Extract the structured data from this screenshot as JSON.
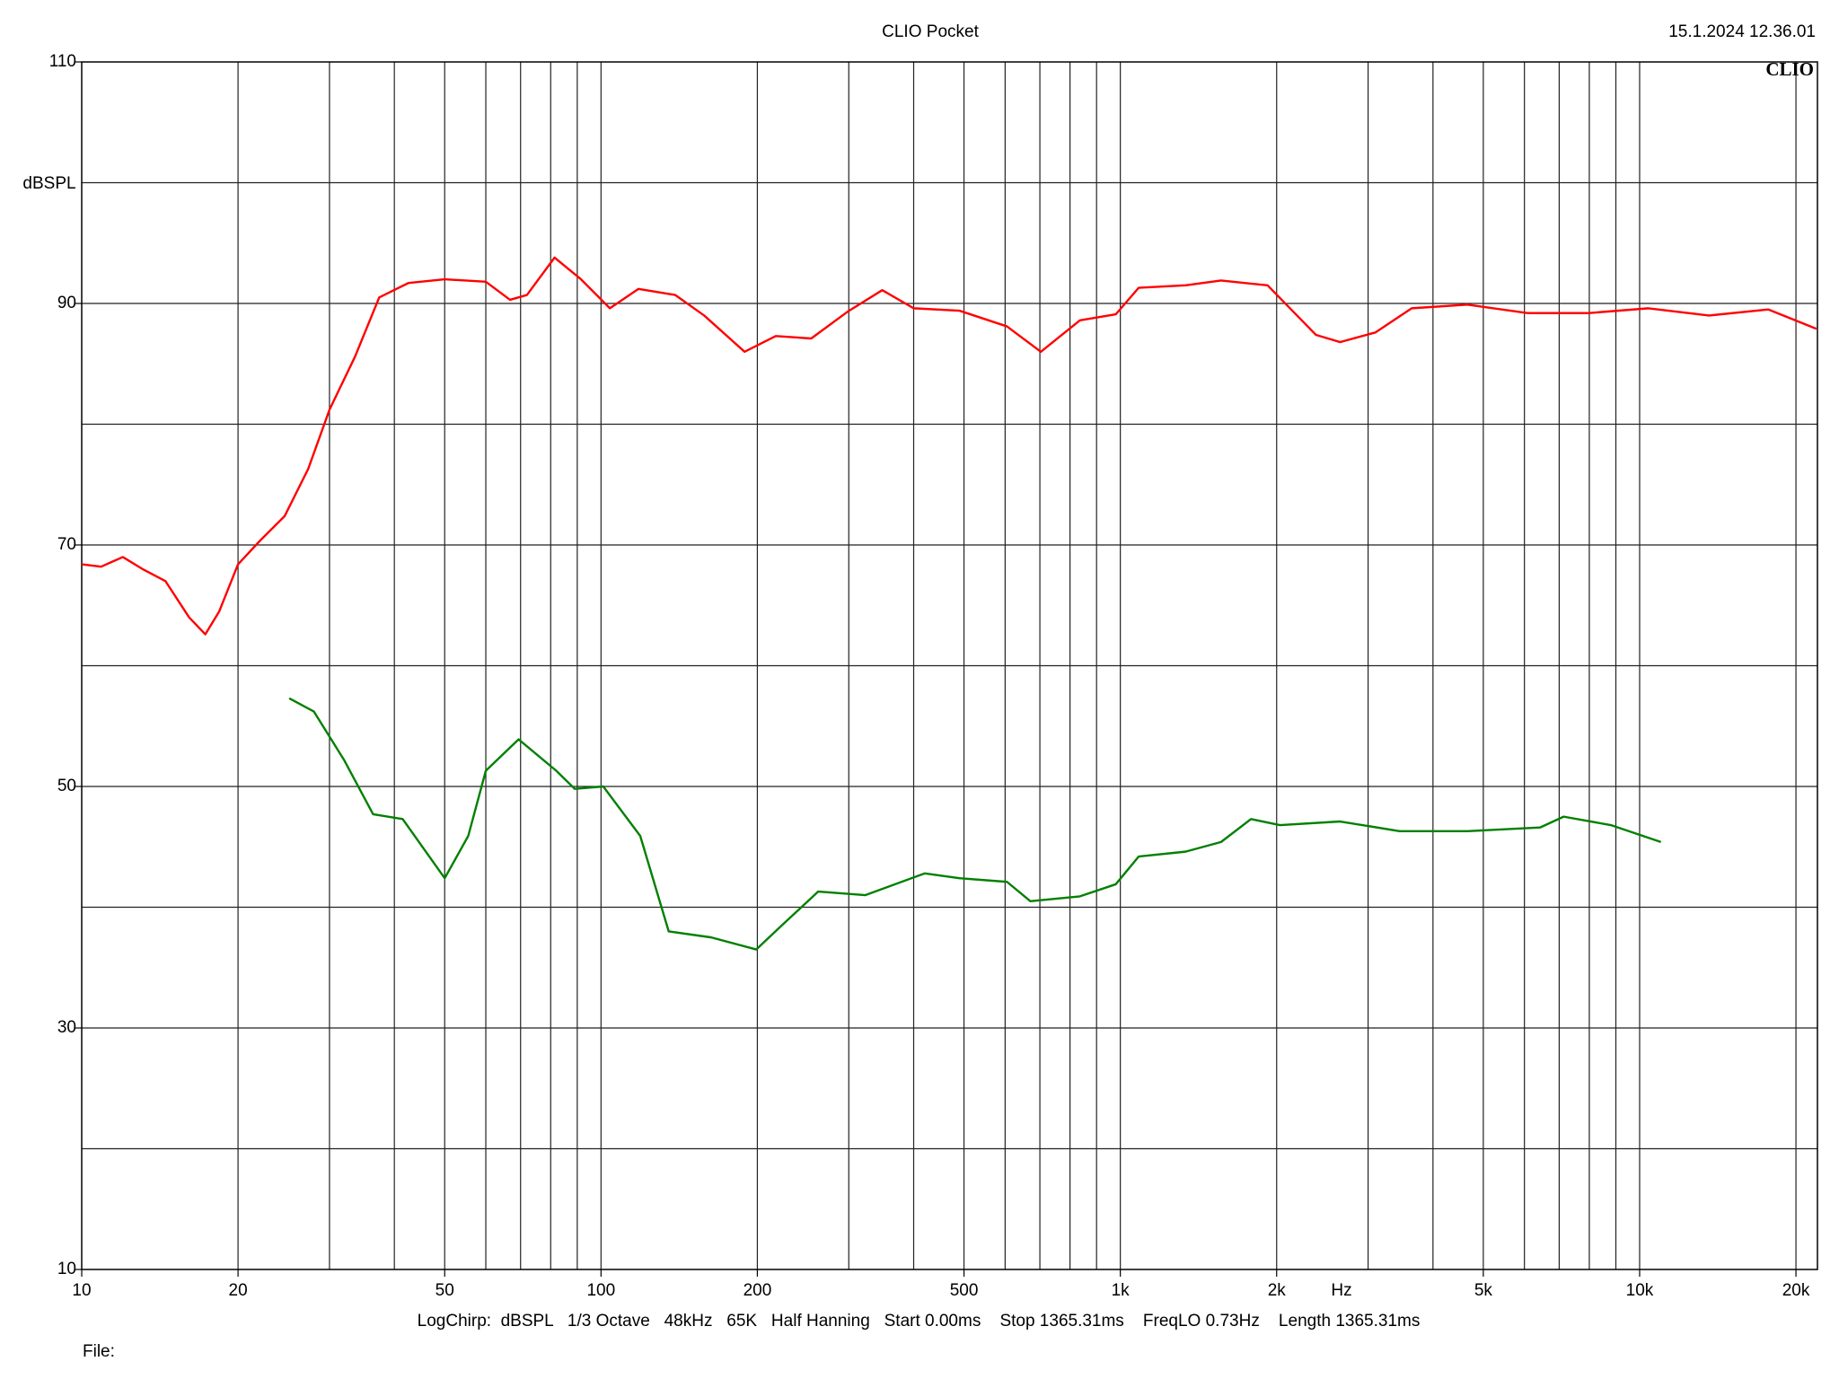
{
  "chart_data": {
    "type": "line",
    "title": "CLIO Pocket",
    "timestamp": "15.1.2024 12.36.01",
    "logo": "CLIO",
    "y_label": "dBSPL",
    "x_label": "Hz",
    "info": "LogChirp:  dBSPL   1/3 Octave   48kHz   65K   Half Hanning   Start 0.00ms    Stop 1365.31ms    FreqLO 0.73Hz    Length 1365.31ms",
    "file_label": "File:",
    "log_x": true,
    "grid": true,
    "xlim": [
      10,
      22000
    ],
    "ylim": [
      10,
      110
    ],
    "xticks": [
      10,
      20,
      50,
      100,
      200,
      500,
      {
        "value": 1000,
        "label": "1k"
      },
      {
        "value": 2000,
        "label": "2k"
      },
      {
        "value": 5000,
        "label": "5k"
      },
      {
        "value": 10000,
        "label": "10k"
      },
      {
        "value": 20000,
        "label": "20k"
      }
    ],
    "yticks": [
      10,
      30,
      50,
      70,
      90,
      110
    ],
    "xgrid": [
      20,
      30,
      40,
      50,
      60,
      70,
      80,
      90,
      100,
      200,
      300,
      400,
      500,
      600,
      700,
      800,
      900,
      1000,
      2000,
      3000,
      4000,
      5000,
      6000,
      7000,
      8000,
      9000,
      10000,
      20000
    ],
    "ygrid": [
      20,
      30,
      40,
      50,
      60,
      70,
      80,
      90,
      100
    ],
    "series": [
      {
        "color": "#ff0000",
        "x": [
          10,
          10.9,
          12,
          13.1,
          14.5,
          16.1,
          17.3,
          18.4,
          20,
          22.1,
          24.6,
          27.3,
          30,
          33.6,
          37.4,
          42.6,
          50,
          60,
          66.8,
          72,
          81.4,
          91.5,
          104,
          118,
          139,
          158,
          189,
          217,
          254,
          298,
          348,
          400,
          490,
          605,
          703,
          836,
          980,
          1085,
          1335,
          1563,
          1921,
          2380,
          2650,
          3100,
          3640,
          4660,
          6100,
          7950,
          10400,
          13600,
          17700,
          21900
        ],
        "values": [
          68.4,
          68.2,
          69.0,
          68.0,
          67.0,
          64.0,
          62.6,
          64.5,
          68.4,
          70.4,
          72.4,
          76.3,
          81.2,
          85.6,
          90.5,
          91.7,
          92.0,
          91.8,
          90.3,
          90.7,
          93.8,
          92.0,
          89.6,
          91.2,
          90.7,
          89.0,
          86.0,
          87.3,
          87.1,
          89.3,
          91.1,
          89.6,
          89.4,
          88.1,
          86.0,
          88.6,
          89.1,
          91.3,
          91.5,
          91.9,
          91.5,
          87.4,
          86.8,
          87.6,
          89.6,
          89.9,
          89.2,
          89.2,
          89.6,
          89.0,
          89.5,
          87.9
        ]
      },
      {
        "color": "#008000",
        "x": [
          25.1,
          28,
          32,
          36.4,
          41.5,
          50,
          55.5,
          60,
          69.4,
          82,
          89,
          101,
          119,
          135,
          163,
          199,
          223,
          262,
          323,
          420,
          490,
          605,
          671,
          836,
          980,
          1085,
          1335,
          1563,
          1785,
          2030,
          2650,
          3450,
          4660,
          6430,
          7140,
          8800,
          10990
        ],
        "values": [
          57.3,
          56.2,
          52.2,
          47.7,
          47.3,
          42.4,
          45.9,
          51.3,
          53.9,
          51.3,
          49.8,
          50.0,
          45.9,
          38.0,
          37.5,
          36.5,
          38.5,
          41.3,
          41.0,
          42.8,
          42.4,
          42.1,
          40.5,
          40.9,
          41.9,
          44.2,
          44.6,
          45.4,
          47.3,
          46.8,
          47.1,
          46.3,
          46.3,
          46.6,
          47.5,
          46.8,
          45.4
        ]
      }
    ]
  }
}
